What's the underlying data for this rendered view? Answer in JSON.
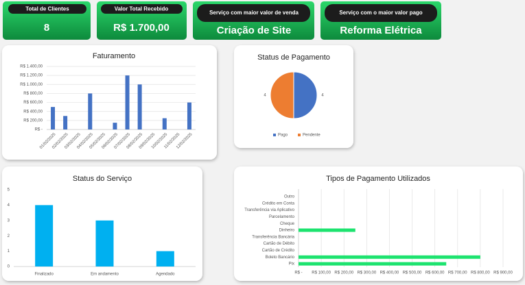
{
  "kpis": [
    {
      "title": "Total de Clientes",
      "value": "8"
    },
    {
      "title": "Valor Total Recebido",
      "value": "R$ 1.700,00"
    },
    {
      "title": "Serviço com maior valor de venda",
      "value": "Criação de Site"
    },
    {
      "title": "Serviço com o maior valor pago",
      "value": "Reforma Elétrica"
    }
  ],
  "chart_data": [
    {
      "type": "bar",
      "title": "Faturamento",
      "categories": [
        "01/02/2025",
        "02/02/2025",
        "03/02/2025",
        "04/02/2025",
        "05/02/2025",
        "06/02/2025",
        "07/02/2025",
        "08/02/2025",
        "09/02/2025",
        "10/02/2025",
        "11/02/2025",
        "12/02/2025"
      ],
      "values": [
        500,
        300,
        0,
        800,
        0,
        150,
        1200,
        1000,
        0,
        250,
        0,
        600
      ],
      "color": "#4472c4",
      "ylim": [
        0,
        1400
      ],
      "yticks": [
        {
          "value": 0,
          "label": "R$ -"
        },
        {
          "value": 200,
          "label": "R$ 200,00"
        },
        {
          "value": 400,
          "label": "R$ 400,00"
        },
        {
          "value": 600,
          "label": "R$ 600,00"
        },
        {
          "value": 800,
          "label": "R$ 800,00"
        },
        {
          "value": 1000,
          "label": "R$ 1.000,00"
        },
        {
          "value": 1200,
          "label": "R$ 1.200,00"
        },
        {
          "value": 1400,
          "label": "R$ 1.400,00"
        }
      ],
      "grid": true
    },
    {
      "type": "pie",
      "title": "Status de Pagamento",
      "categories": [
        "Pago",
        "Pendente"
      ],
      "values": [
        4,
        4
      ],
      "colors": [
        "#4472c4",
        "#ed7d31"
      ],
      "legend": "bottom"
    },
    {
      "type": "bar",
      "title": "Status do Serviço",
      "categories": [
        "Finalizado",
        "Em andamento",
        "Agendado"
      ],
      "values": [
        4,
        3,
        1
      ],
      "color": "#00b0f0",
      "ylim": [
        0,
        5
      ],
      "yticks": [
        0,
        1,
        2,
        3,
        4,
        5
      ],
      "grid": false
    },
    {
      "type": "hbar",
      "title": "Tipos de Pagamento Utilizados",
      "categories": [
        "Outro",
        "Crédito em Conta",
        "Transferência via Aplicativo",
        "Parcelamento",
        "Cheque",
        "Dinheiro",
        "Transferência Bancária",
        "Cartão de Débito",
        "Cartão de Crédito",
        "Boleto Bancário",
        "Pix"
      ],
      "values": [
        0,
        0,
        0,
        0,
        0,
        250,
        0,
        0,
        0,
        800,
        650
      ],
      "color": "#1de36f",
      "xlim": [
        0,
        900
      ],
      "xticks": [
        {
          "value": 0,
          "label": "R$ -"
        },
        {
          "value": 100,
          "label": "R$ 100,00"
        },
        {
          "value": 200,
          "label": "R$ 200,00"
        },
        {
          "value": 300,
          "label": "R$ 300,00"
        },
        {
          "value": 400,
          "label": "R$ 400,00"
        },
        {
          "value": 500,
          "label": "R$ 500,00"
        },
        {
          "value": 600,
          "label": "R$ 600,00"
        },
        {
          "value": 700,
          "label": "R$ 700,00"
        },
        {
          "value": 800,
          "label": "R$ 800,00"
        },
        {
          "value": 900,
          "label": "R$ 900,00"
        }
      ],
      "grid": true
    }
  ]
}
